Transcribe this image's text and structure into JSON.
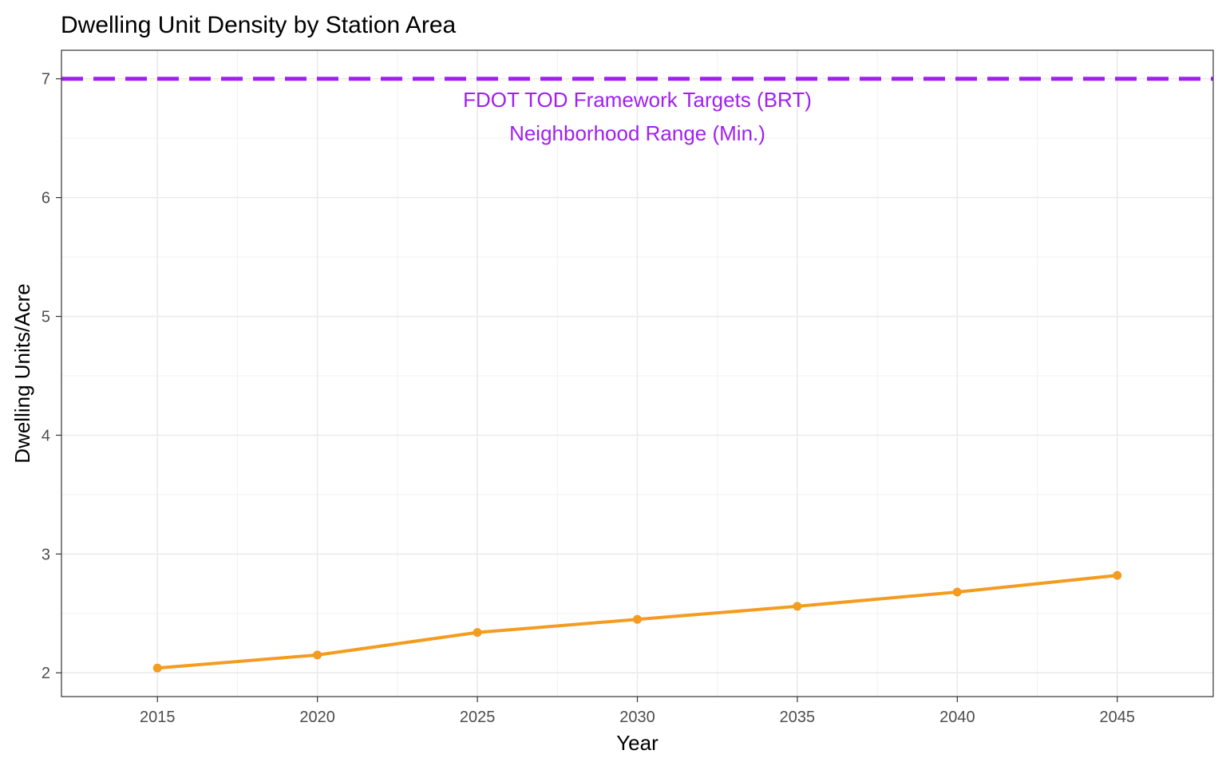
{
  "chart_data": {
    "type": "line",
    "title": "Dwelling Unit Density by Station Area",
    "xlabel": "Year",
    "ylabel": "Dwelling Units/Acre",
    "x": [
      2015,
      2020,
      2025,
      2030,
      2035,
      2040,
      2045
    ],
    "series": [
      {
        "values": [
          2.04,
          2.15,
          2.34,
          2.45,
          2.56,
          2.68,
          2.82
        ],
        "color": "#f39c1f"
      }
    ],
    "xlim": [
      2012,
      2048
    ],
    "ylim": [
      1.8,
      7.24
    ],
    "xticks": [
      2015,
      2020,
      2025,
      2030,
      2035,
      2040,
      2045
    ],
    "yticks": [
      2,
      3,
      4,
      5,
      6,
      7
    ],
    "grid": true,
    "reference_line": {
      "y": 7,
      "color": "#a020f0",
      "style": "dashed",
      "label_lines": [
        "FDOT TOD Framework Targets (BRT)",
        "Neighborhood Range (Min.)"
      ]
    }
  }
}
